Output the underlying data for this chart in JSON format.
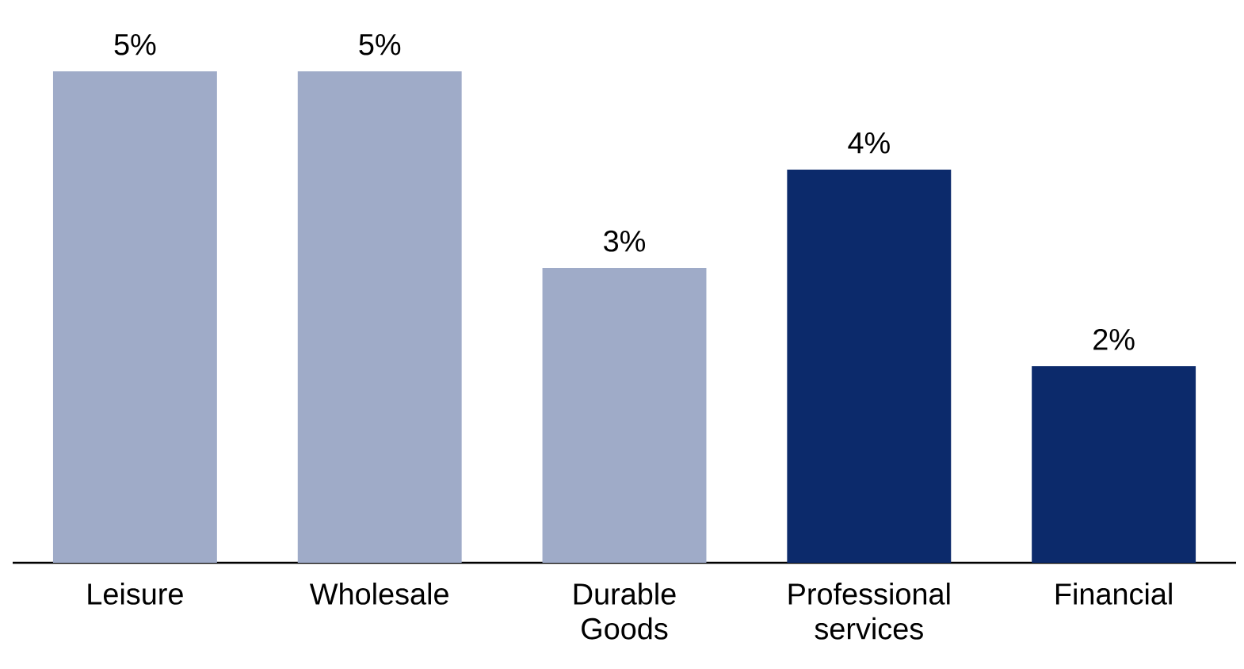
{
  "chart_data": {
    "type": "bar",
    "categories": [
      "Leisure",
      "Wholesale",
      "Durable Goods",
      "Professional services",
      "Financial"
    ],
    "values": [
      5,
      5,
      3,
      4,
      2
    ],
    "colors": [
      "#9fabc8",
      "#9fabc8",
      "#9fabc8",
      "#0c2a6b",
      "#0c2a6b"
    ],
    "value_labels": [
      "5%",
      "5%",
      "3%",
      "4%",
      "2%"
    ]
  }
}
